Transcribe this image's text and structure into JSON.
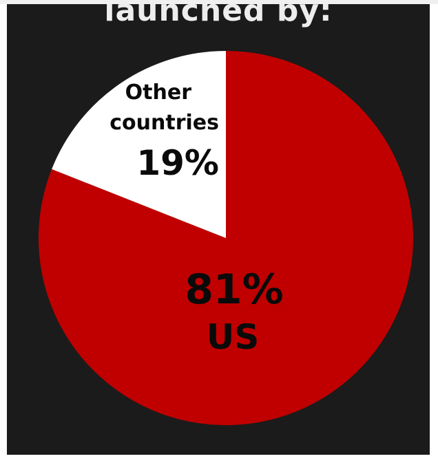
{
  "chart_data": {
    "type": "pie",
    "title": "launched by:",
    "slices": [
      {
        "label": "US",
        "value": 81,
        "value_label": "81%",
        "color": "#c00000",
        "text_color": "#0a0a0a"
      },
      {
        "label": "Other countries",
        "label_lines": [
          "Other",
          "countries"
        ],
        "value": 19,
        "value_label": "19%",
        "color": "#ffffff",
        "text_color": "#0a0a0a"
      }
    ]
  },
  "colors": {
    "background": "#1b1b1b",
    "title": "#ededed"
  }
}
